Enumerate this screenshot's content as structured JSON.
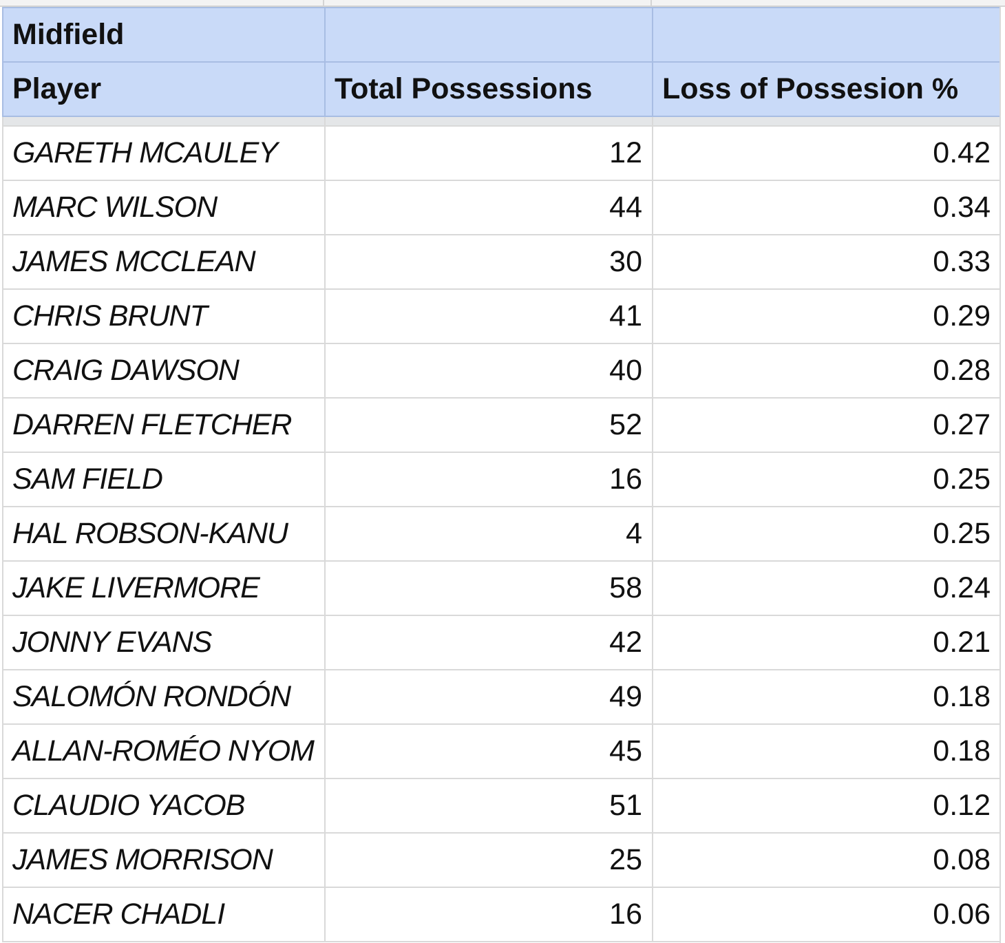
{
  "section_label": "Midfield",
  "columns": [
    "Player",
    "Total Possessions",
    "Loss of Possesion %"
  ],
  "rows": [
    {
      "player": "GARETH MCAULEY",
      "total": "12",
      "loss": "0.42"
    },
    {
      "player": "MARC WILSON",
      "total": "44",
      "loss": "0.34"
    },
    {
      "player": "JAMES MCCLEAN",
      "total": "30",
      "loss": "0.33"
    },
    {
      "player": "CHRIS BRUNT",
      "total": "41",
      "loss": "0.29"
    },
    {
      "player": "CRAIG DAWSON",
      "total": "40",
      "loss": "0.28"
    },
    {
      "player": "DARREN FLETCHER",
      "total": "52",
      "loss": "0.27"
    },
    {
      "player": "SAM FIELD",
      "total": "16",
      "loss": "0.25"
    },
    {
      "player": "HAL ROBSON-KANU",
      "total": "4",
      "loss": "0.25"
    },
    {
      "player": "JAKE LIVERMORE",
      "total": "58",
      "loss": "0.24"
    },
    {
      "player": "JONNY EVANS",
      "total": "42",
      "loss": "0.21"
    },
    {
      "player": "SALOMÓN RONDÓN",
      "total": "49",
      "loss": "0.18"
    },
    {
      "player": "ALLAN-ROMÉO NYOM",
      "total": "45",
      "loss": "0.18"
    },
    {
      "player": "CLAUDIO YACOB",
      "total": "51",
      "loss": "0.12"
    },
    {
      "player": "JAMES MORRISON",
      "total": "25",
      "loss": "0.08"
    },
    {
      "player": "NACER CHADLI",
      "total": "16",
      "loss": "0.06"
    }
  ]
}
